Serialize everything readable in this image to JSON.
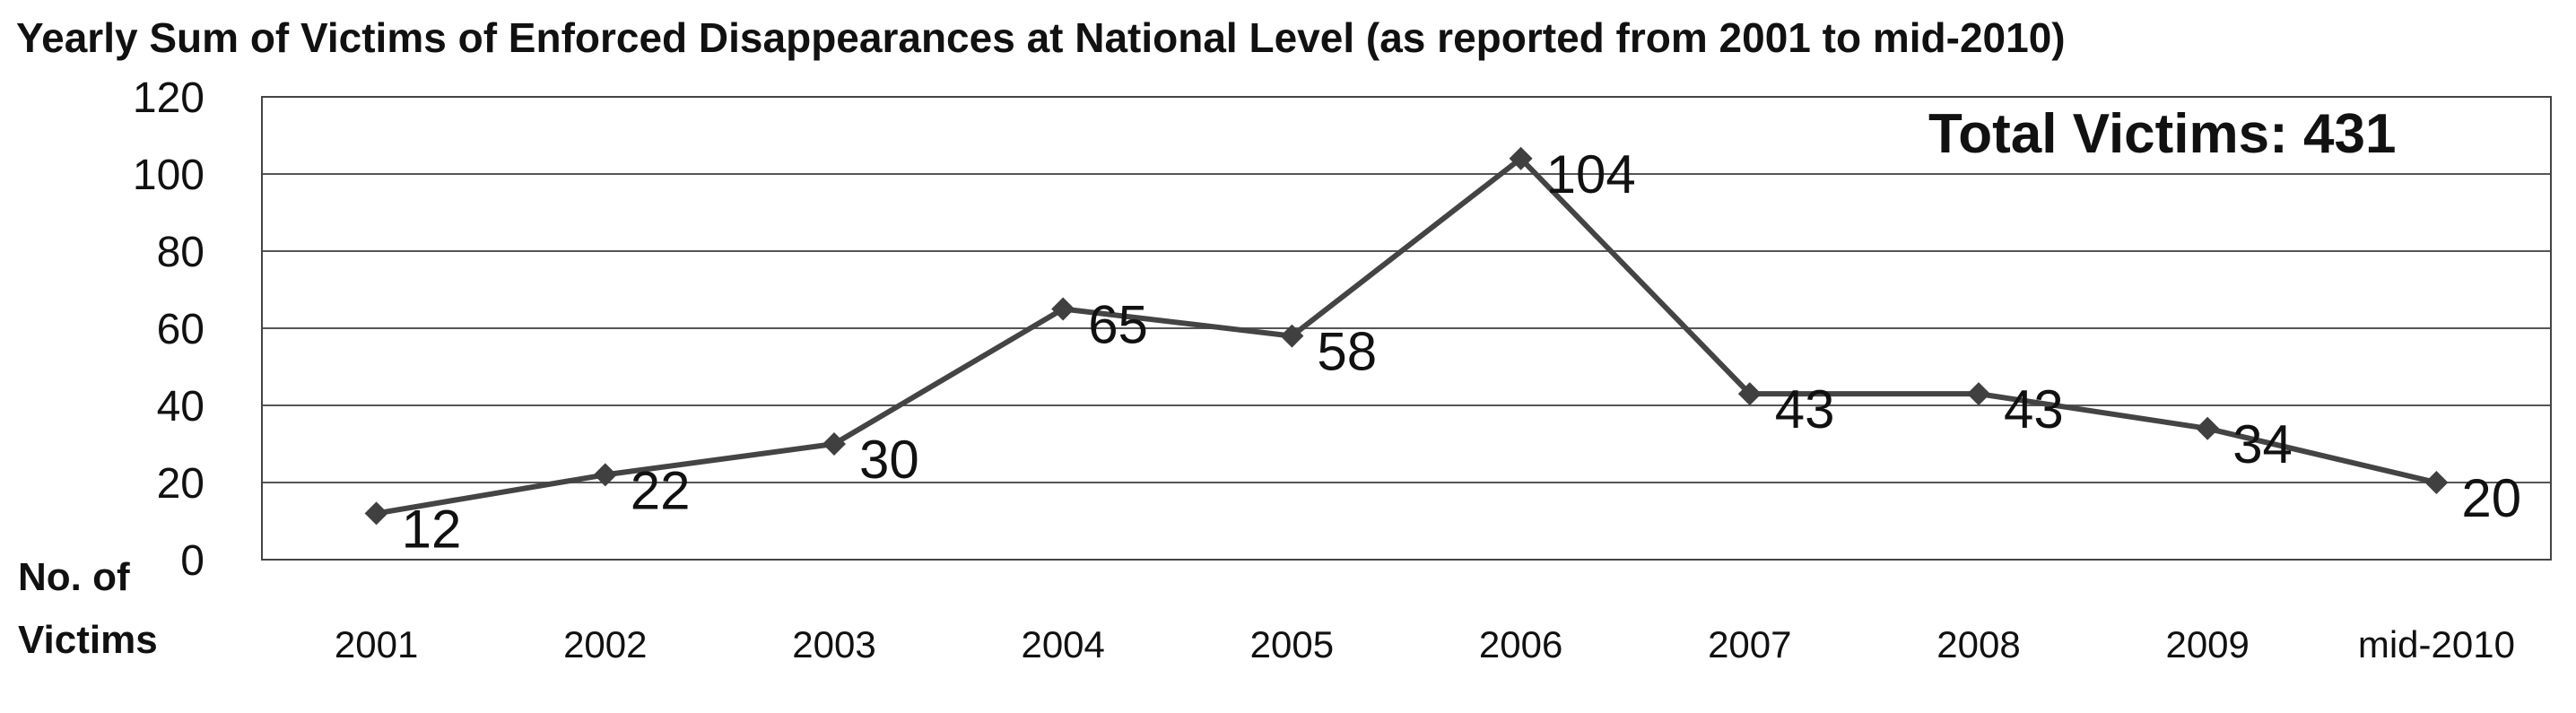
{
  "chart_data": {
    "type": "line",
    "title": "Yearly Sum of Victims of Enforced Disappearances at National Level (as reported from 2001 to  mid-2010)",
    "ylabel": "No. of Victims",
    "ylabel_lines": [
      "No. of",
      "Victims"
    ],
    "xlabel": "",
    "categories": [
      "2001",
      "2002",
      "2003",
      "2004",
      "2005",
      "2006",
      "2007",
      "2008",
      "2009",
      "mid-2010"
    ],
    "series": [
      {
        "values": [
          12,
          22,
          30,
          65,
          58,
          104,
          43,
          43,
          34,
          20
        ],
        "color": "#444444"
      }
    ],
    "data_labels": [
      "12",
      "22",
      "30",
      "65",
      "58",
      "104",
      "43",
      "43",
      "34",
      "20"
    ],
    "ylim": [
      0,
      120
    ],
    "yticks": [
      0,
      20,
      40,
      60,
      80,
      100,
      120
    ],
    "ytick_labels": [
      "0",
      "20",
      "40",
      "60",
      "80",
      "100",
      "120"
    ],
    "grid": true,
    "legend": "none",
    "annotation": "Total Victims: 431",
    "marker": "diamond"
  }
}
